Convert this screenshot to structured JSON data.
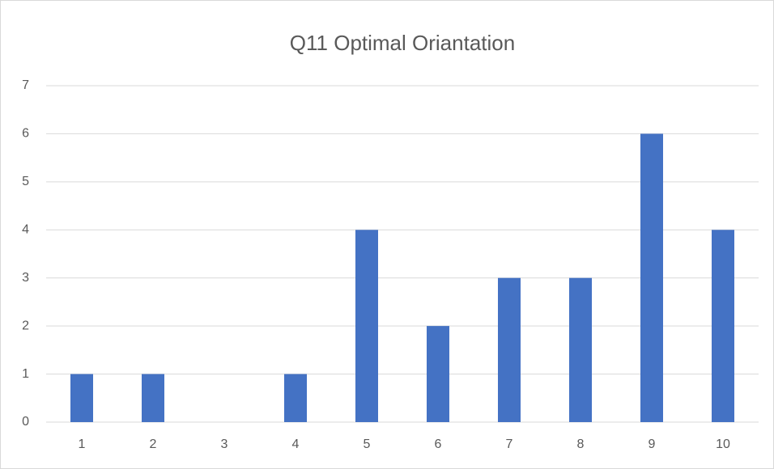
{
  "chart_data": {
    "type": "bar",
    "title": "Q11 Optimal Oriantation",
    "categories": [
      "1",
      "2",
      "3",
      "4",
      "5",
      "6",
      "7",
      "8",
      "9",
      "10"
    ],
    "values": [
      1,
      1,
      0,
      1,
      4,
      2,
      3,
      3,
      6,
      4
    ],
    "color": "#4472c4",
    "ylim": [
      0,
      7
    ],
    "yticks": [
      0,
      1,
      2,
      3,
      4,
      5,
      6,
      7
    ],
    "grid": true
  }
}
